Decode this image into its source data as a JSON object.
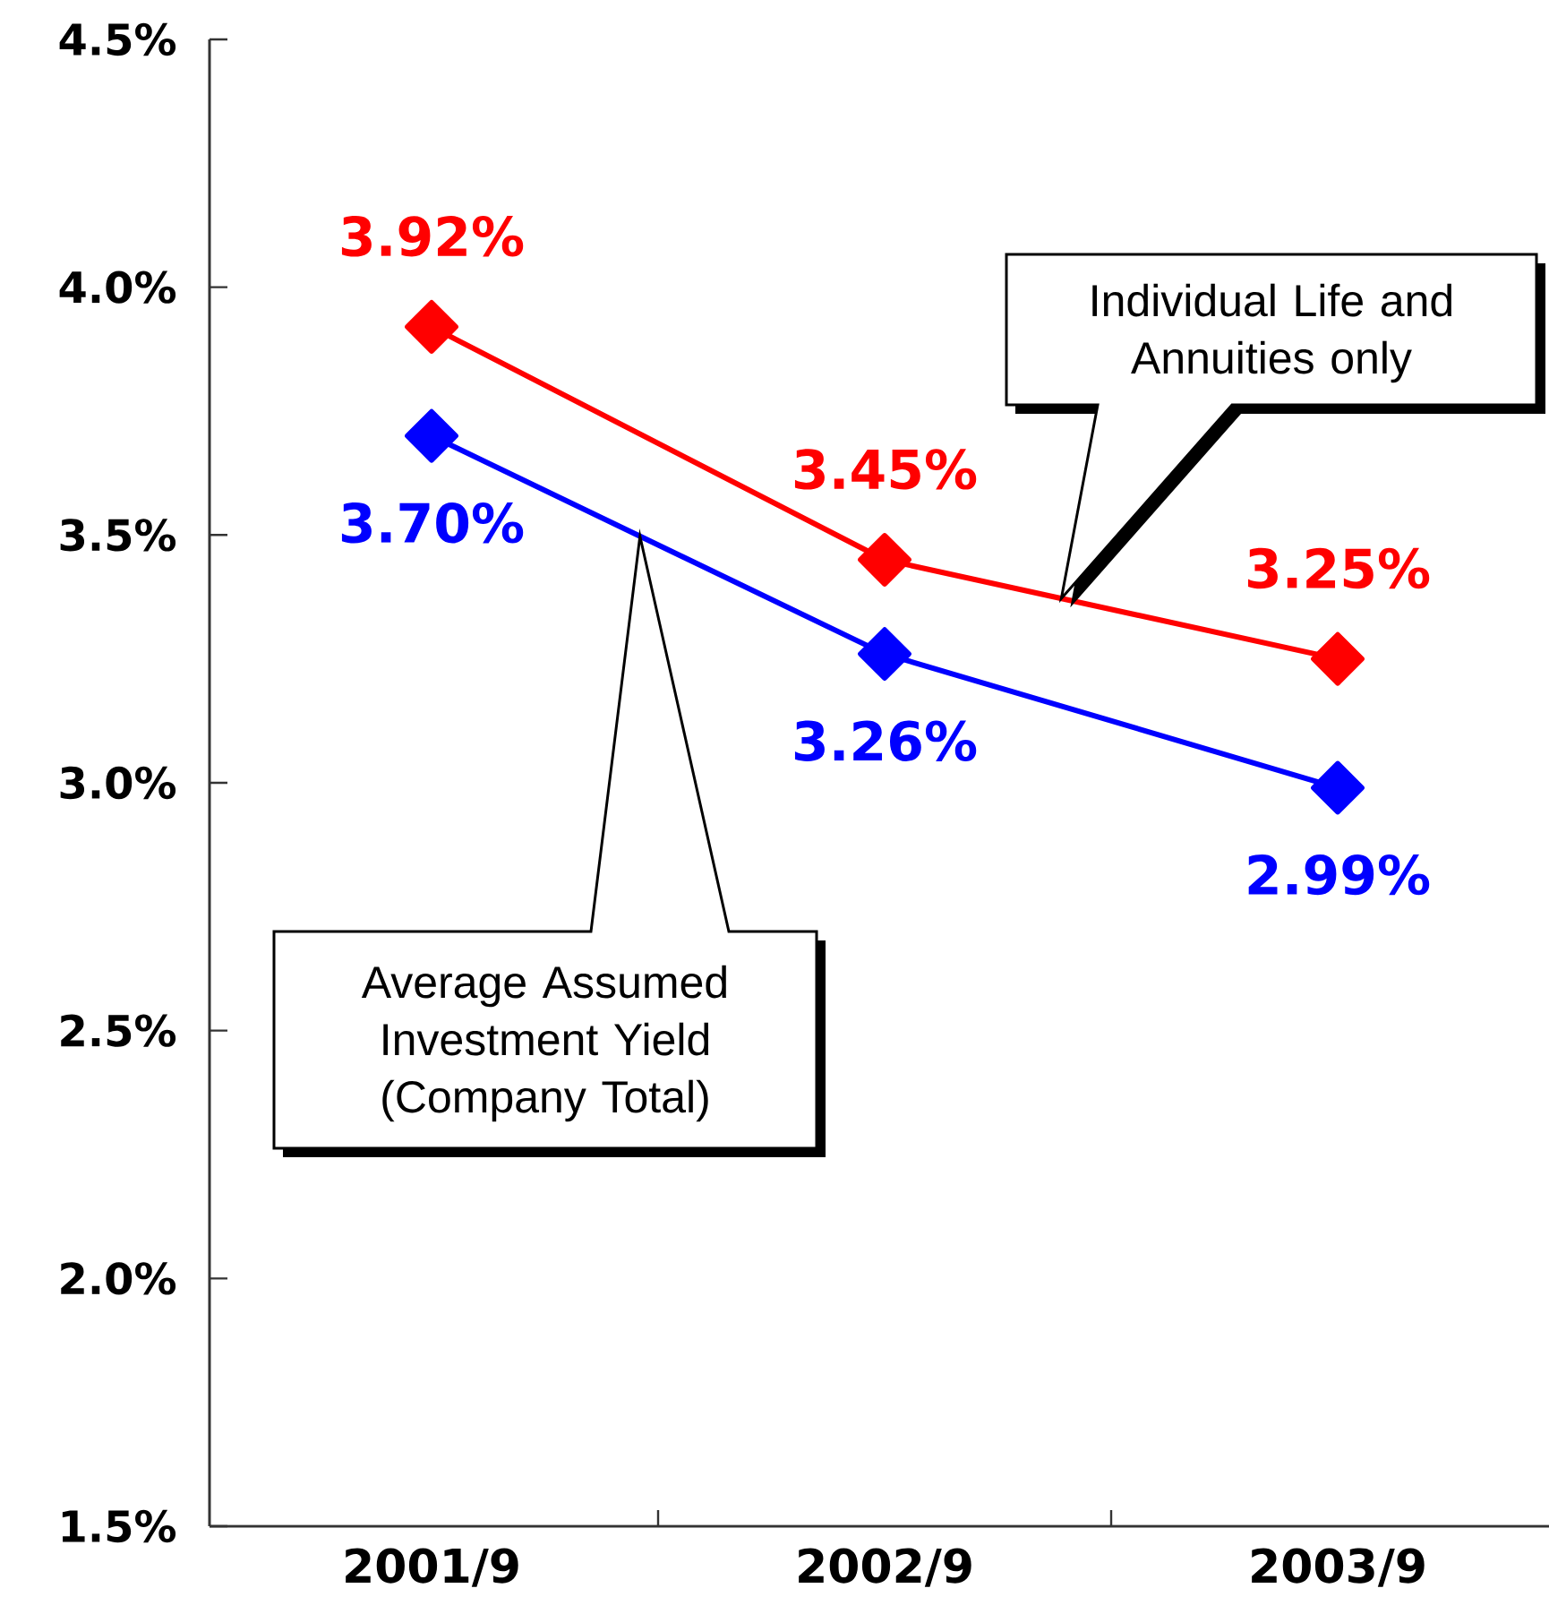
{
  "chart_data": {
    "type": "line",
    "categories": [
      "2001/9",
      "2002/9",
      "2003/9"
    ],
    "series": [
      {
        "color": "#ff0000",
        "values": [
          3.92,
          3.45,
          3.25
        ],
        "value_labels": [
          "3.92%",
          "3.45%",
          "3.25%"
        ]
      },
      {
        "color": "#0000ff",
        "values": [
          3.7,
          3.26,
          2.99
        ],
        "value_labels": [
          "3.70%",
          "3.26%",
          "2.99%"
        ]
      }
    ],
    "ylim": [
      1.5,
      4.5
    ],
    "yticks": [
      {
        "value": 1.5,
        "label": "1.5%"
      },
      {
        "value": 2.0,
        "label": "2.0%"
      },
      {
        "value": 2.5,
        "label": "2.5%"
      },
      {
        "value": 3.0,
        "label": "3.0%"
      },
      {
        "value": 3.5,
        "label": "3.5%"
      },
      {
        "value": 4.0,
        "label": "4.0%"
      },
      {
        "value": 4.5,
        "label": "4.5%"
      }
    ],
    "marker": "diamond",
    "line_style": "solid",
    "annotations": [
      "Individual Life and Annuities only",
      "Average Assumed Investment Yield (Company Total)"
    ]
  }
}
